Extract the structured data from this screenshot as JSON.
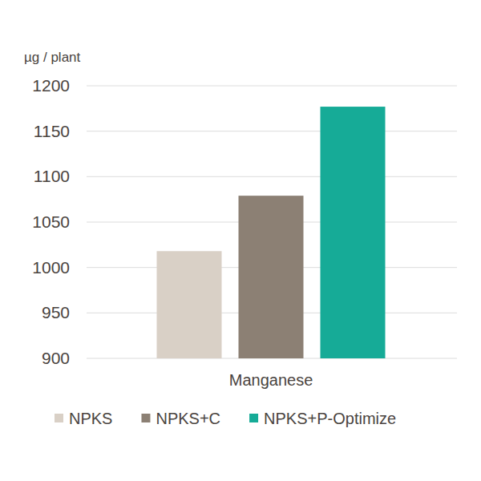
{
  "chart_data": {
    "type": "bar",
    "ylabel": "µg / plant",
    "categories": [
      "Manganese"
    ],
    "series": [
      {
        "name": "NPKS",
        "color": "#d9d0c6",
        "values": [
          1018
        ]
      },
      {
        "name": "NPKS+C",
        "color": "#8c8074",
        "values": [
          1079
        ]
      },
      {
        "name": "NPKS+P-Optimize",
        "color": "#16ab97",
        "values": [
          1177
        ]
      }
    ],
    "ylim": [
      900,
      1200
    ],
    "yticks": [
      900,
      950,
      1000,
      1050,
      1100,
      1150,
      1200
    ],
    "grid": true,
    "legend": "bottom"
  }
}
